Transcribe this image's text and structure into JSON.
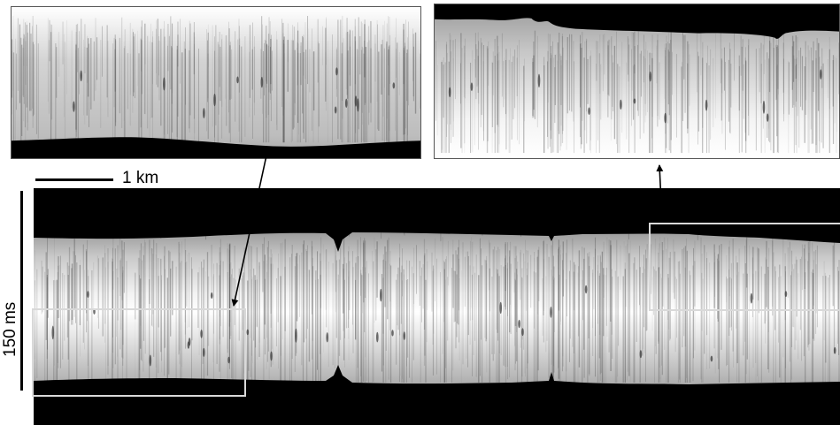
{
  "figure": {
    "scale_horizontal_label": "1 km",
    "scale_vertical_label": "150 ms"
  },
  "colors": {
    "background": "#ffffff",
    "seafloor": "#000000",
    "water_column_light": "#ffffff",
    "noise_band": "#2e2e2e",
    "highlight_box": "#d9d9d9",
    "inset_border": "#555555",
    "arrow": "#000000"
  }
}
